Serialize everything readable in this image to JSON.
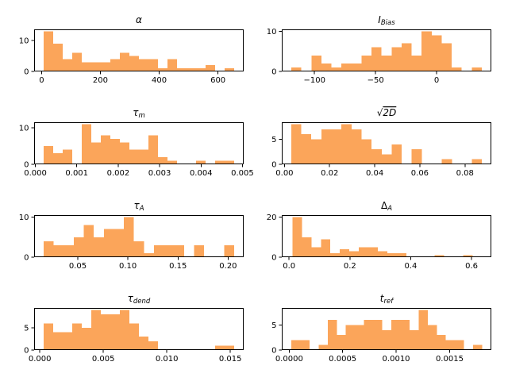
{
  "style": {
    "background": "#ffffff",
    "bar_color": "#fba55a",
    "axis_color": "#000000",
    "text_color": "#000000"
  },
  "chart_data": [
    {
      "id": "alpha",
      "type": "bar",
      "title": {
        "main": "α",
        "sub": "",
        "sqrt": false
      },
      "bin_start": 7,
      "bin_width": 32.4,
      "values": [
        13,
        9,
        4,
        6,
        3,
        3,
        3,
        4,
        6,
        5,
        4,
        4,
        1,
        4,
        1,
        1,
        1,
        2,
        0,
        1
      ],
      "xlim": [
        -25.4,
        687.4
      ],
      "ylim": [
        0,
        13.65
      ],
      "xticks": {
        "values": [
          0,
          200,
          400,
          600
        ],
        "labels": [
          "0",
          "200",
          "400",
          "600"
        ]
      },
      "yticks": {
        "values": [
          0,
          10
        ],
        "labels": [
          "0",
          "10"
        ]
      },
      "grid": false
    },
    {
      "id": "i-bias",
      "type": "bar",
      "title": {
        "main": "I",
        "sub": "Bias",
        "sqrt": false
      },
      "bin_start": -119,
      "bin_width": 8.21,
      "values": [
        1,
        0,
        4,
        2,
        1,
        2,
        2,
        4,
        6,
        4,
        6,
        7,
        4,
        10,
        9,
        7,
        1,
        0,
        1
      ],
      "xlim": [
        -126.8,
        44.8
      ],
      "ylim": [
        0,
        10.5
      ],
      "xticks": {
        "values": [
          -100,
          -50,
          0
        ],
        "labels": [
          "−100",
          "−50",
          "0"
        ]
      },
      "yticks": {
        "values": [
          0,
          10
        ],
        "labels": [
          "0",
          "10"
        ]
      },
      "grid": false
    },
    {
      "id": "tau-m",
      "type": "bar",
      "title": {
        "main": "τ",
        "sub": "m",
        "sqrt": false
      },
      "bin_start": 0.0002,
      "bin_width": 0.00023,
      "values": [
        5,
        3,
        4,
        0,
        11,
        6,
        8,
        7,
        6,
        4,
        4,
        8,
        2,
        1,
        0,
        0,
        1,
        0,
        1,
        1
      ],
      "xlim": [
        -3e-05,
        0.00503
      ],
      "ylim": [
        0,
        11.55
      ],
      "xticks": {
        "values": [
          0.0,
          0.001,
          0.002,
          0.003,
          0.004,
          0.005
        ],
        "labels": [
          "0.000",
          "0.001",
          "0.002",
          "0.003",
          "0.004",
          "0.005"
        ]
      },
      "yticks": {
        "values": [
          0,
          10
        ],
        "labels": [
          "0",
          "10"
        ]
      },
      "grid": false
    },
    {
      "id": "sqrt-2d",
      "type": "bar",
      "title": {
        "main": "2D",
        "sub": "",
        "sqrt": true
      },
      "bin_start": 0.003,
      "bin_width": 0.00445,
      "values": [
        8,
        6,
        5,
        7,
        7,
        8,
        7,
        5,
        3,
        2,
        4,
        0,
        3,
        0,
        0,
        1,
        0,
        0,
        1
      ],
      "xlim": [
        -0.0012,
        0.0917
      ],
      "ylim": [
        0,
        8.4
      ],
      "xticks": {
        "values": [
          0.0,
          0.02,
          0.04,
          0.06,
          0.08
        ],
        "labels": [
          "0.00",
          "0.02",
          "0.04",
          "0.06",
          "0.08"
        ]
      },
      "yticks": {
        "values": [
          0,
          5
        ],
        "labels": [
          "0",
          "5"
        ]
      },
      "grid": false
    },
    {
      "id": "tau-a",
      "type": "bar",
      "title": {
        "main": "τ",
        "sub": "A",
        "sqrt": false
      },
      "bin_start": 0.016,
      "bin_width": 0.01,
      "values": [
        4,
        3,
        3,
        5,
        8,
        5,
        7,
        7,
        10,
        4,
        1,
        3,
        3,
        3,
        0,
        3,
        0,
        0,
        3
      ],
      "xlim": [
        0.0065,
        0.2155
      ],
      "ylim": [
        0,
        10.5
      ],
      "xticks": {
        "values": [
          0.05,
          0.1,
          0.15,
          0.2
        ],
        "labels": [
          "0.05",
          "0.10",
          "0.15",
          "0.20"
        ]
      },
      "yticks": {
        "values": [
          0,
          10
        ],
        "labels": [
          "0",
          "10"
        ]
      },
      "grid": false
    },
    {
      "id": "delta-a",
      "type": "bar",
      "title": {
        "main": "Δ",
        "sub": "A",
        "sqrt": false
      },
      "bin_start": 0.011,
      "bin_width": 0.0312,
      "values": [
        20,
        10,
        5,
        9,
        2,
        4,
        3,
        5,
        5,
        3,
        2,
        2,
        0,
        0,
        0,
        1,
        0,
        0,
        1
      ],
      "xlim": [
        -0.024,
        0.665
      ],
      "ylim": [
        0,
        21
      ],
      "xticks": {
        "values": [
          0.0,
          0.2,
          0.4,
          0.6
        ],
        "labels": [
          "0.0",
          "0.2",
          "0.4",
          "0.6"
        ]
      },
      "yticks": {
        "values": [
          0,
          20
        ],
        "labels": [
          "0",
          "20"
        ]
      },
      "grid": false
    },
    {
      "id": "tau-dend",
      "type": "bar",
      "title": {
        "main": "τ",
        "sub": "dend",
        "sqrt": false
      },
      "bin_start": 0.0003,
      "bin_width": 0.00075,
      "values": [
        6,
        4,
        4,
        6,
        5,
        9,
        8,
        8,
        9,
        6,
        3,
        2,
        0,
        0,
        0,
        0,
        0,
        0,
        1,
        1
      ],
      "xlim": [
        -0.00045,
        0.01605
      ],
      "ylim": [
        0,
        9.45
      ],
      "xticks": {
        "values": [
          0.0,
          0.005,
          0.01,
          0.015
        ],
        "labels": [
          "0.000",
          "0.005",
          "0.010",
          "0.015"
        ]
      },
      "yticks": {
        "values": [
          0,
          5
        ],
        "labels": [
          "0",
          "5"
        ]
      },
      "grid": false
    },
    {
      "id": "t-ref",
      "type": "bar",
      "title": {
        "main": "t",
        "sub": "ref",
        "sqrt": false
      },
      "bin_start": 2e-05,
      "bin_width": 8.5e-05,
      "values": [
        2,
        2,
        0,
        1,
        6,
        3,
        5,
        5,
        6,
        6,
        4,
        6,
        6,
        4,
        8,
        5,
        3,
        2,
        2,
        0,
        1
      ],
      "xlim": [
        -6.9e-05,
        0.00189
      ],
      "ylim": [
        0,
        8.4
      ],
      "xticks": {
        "values": [
          0.0,
          0.0005,
          0.001,
          0.0015
        ],
        "labels": [
          "0.0000",
          "0.0005",
          "0.0010",
          "0.0015"
        ]
      },
      "yticks": {
        "values": [
          0,
          5
        ],
        "labels": [
          "0",
          "5"
        ]
      },
      "grid": false
    }
  ]
}
